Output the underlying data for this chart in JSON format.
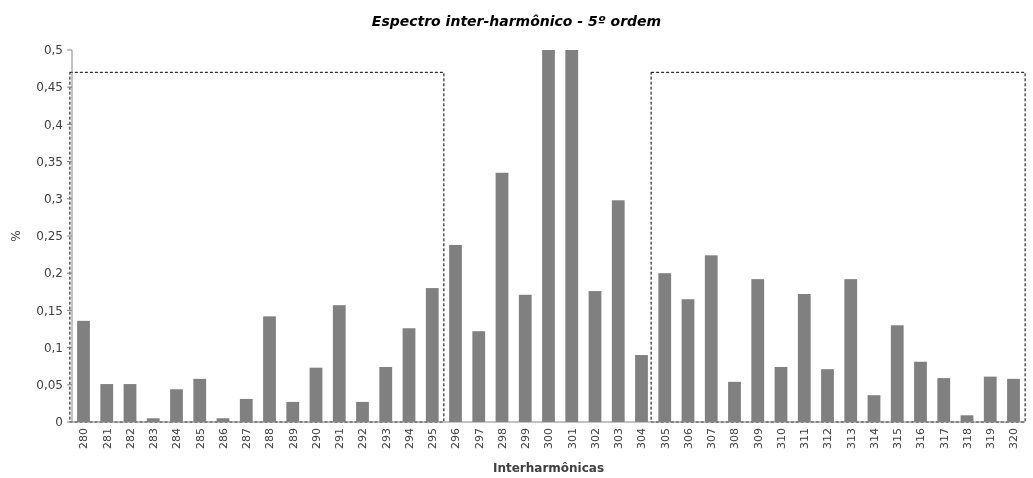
{
  "chart_data": {
    "type": "bar",
    "title": "Espectro inter-harmônico  - 5º ordem",
    "xlabel": "Interharmônicas",
    "ylabel": "%",
    "categories": [
      "280",
      "281",
      "282",
      "283",
      "284",
      "285",
      "286",
      "287",
      "288",
      "289",
      "290",
      "291",
      "292",
      "293",
      "294",
      "295",
      "296",
      "297",
      "298",
      "299",
      "300",
      "301",
      "302",
      "303",
      "304",
      "305",
      "306",
      "307",
      "308",
      "309",
      "310",
      "311",
      "312",
      "313",
      "314",
      "315",
      "316",
      "317",
      "318",
      "319",
      "320"
    ],
    "values": [
      0.136,
      0.051,
      0.051,
      0.005,
      0.044,
      0.058,
      0.005,
      0.031,
      0.142,
      0.027,
      0.073,
      0.157,
      0.027,
      0.074,
      0.126,
      0.18,
      0.238,
      0.122,
      0.335,
      0.171,
      0.5,
      0.5,
      0.176,
      0.298,
      0.09,
      0.2,
      0.165,
      0.224,
      0.054,
      0.192,
      0.074,
      0.172,
      0.071,
      0.192,
      0.036,
      0.13,
      0.081,
      0.059,
      0.009,
      0.061,
      0.058
    ],
    "color": "#808080",
    "ylim": [
      0,
      0.5
    ],
    "yticks": [
      0,
      {
        "value": 0.05,
        "label": "0,05"
      },
      {
        "value": 0.1,
        "label": "0,1"
      },
      {
        "value": 0.15,
        "label": "0,15"
      },
      {
        "value": 0.2,
        "label": "0,2"
      },
      {
        "value": 0.25,
        "label": "0,25"
      },
      {
        "value": 0.3,
        "label": "0,3"
      },
      {
        "value": 0.35,
        "label": "0,35"
      },
      {
        "value": 0.4,
        "label": "0,4"
      },
      {
        "value": 0.45,
        "label": "0,45"
      },
      {
        "value": 0.5,
        "label": "0,5"
      }
    ],
    "grid": false
  }
}
